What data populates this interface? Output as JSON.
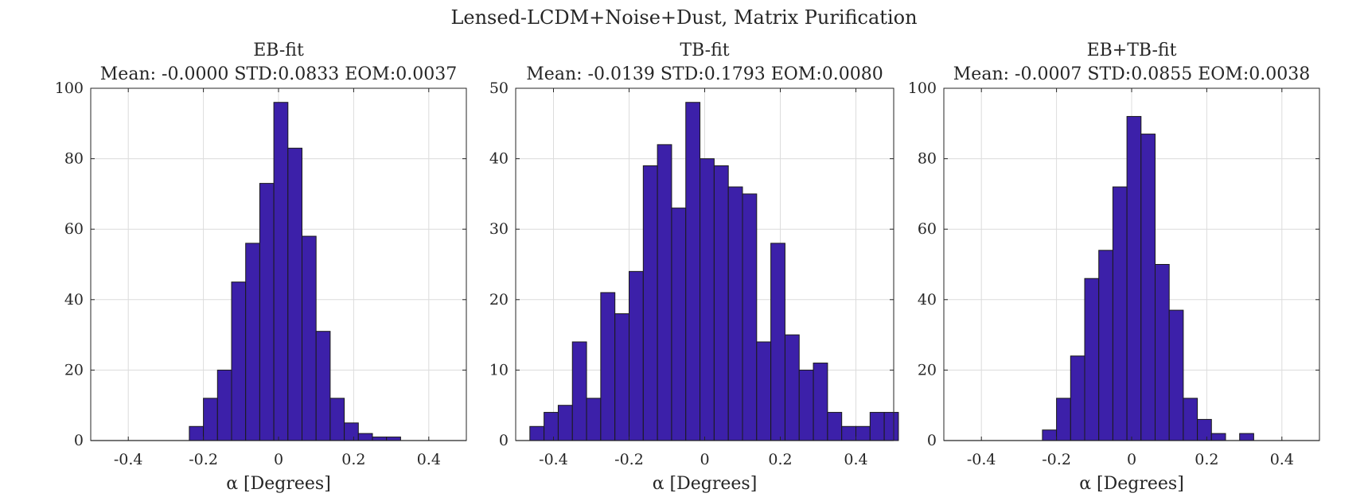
{
  "figure_title": "Lensed-LCDM+Noise+Dust, Matrix Purification",
  "colors": {
    "bar_fill": "#3C20A9",
    "bar_edge": "#1a1a1a",
    "grid": "#dcdcdc",
    "axis": "#262626"
  },
  "chart_data": [
    {
      "type": "bar",
      "title": "EB-fit",
      "subtitle": "Mean: -0.0000 STD:0.0833 EOM:0.0037",
      "xlabel": "α [Degrees]",
      "ylabel": "",
      "xlim": [
        -0.5,
        0.5
      ],
      "ylim": [
        0,
        100
      ],
      "xticks": [
        -0.4,
        -0.2,
        0,
        0.2,
        0.4
      ],
      "xtick_labels": [
        "-0.4",
        "-0.2",
        "0",
        "0.2",
        "0.4"
      ],
      "yticks": [
        0,
        20,
        40,
        60,
        80,
        100
      ],
      "ytick_labels": [
        "0",
        "20",
        "40",
        "60",
        "80",
        "100"
      ],
      "grid": true,
      "bin_edges": [
        -0.5,
        -0.4625,
        -0.425,
        -0.3875,
        -0.35,
        -0.3125,
        -0.275,
        -0.2375,
        -0.2,
        -0.1625,
        -0.125,
        -0.0875,
        -0.05,
        -0.0125,
        0.025,
        0.0625,
        0.1,
        0.1375,
        0.175,
        0.2125,
        0.25,
        0.2875,
        0.325,
        0.3625,
        0.4,
        0.4375,
        0.475,
        0.5
      ],
      "values": [
        0,
        0,
        0,
        0,
        0,
        0,
        0,
        4,
        12,
        20,
        45,
        56,
        73,
        96,
        83,
        58,
        31,
        12,
        5,
        2,
        1,
        1,
        0,
        0,
        0,
        0,
        0
      ]
    },
    {
      "type": "bar",
      "title": "TB-fit",
      "subtitle": "Mean: -0.0139 STD:0.1793 EOM:0.0080",
      "xlabel": "α [Degrees]",
      "ylabel": "",
      "xlim": [
        -0.5,
        0.5
      ],
      "ylim": [
        0,
        50
      ],
      "xticks": [
        -0.4,
        -0.2,
        0,
        0.2,
        0.4
      ],
      "xtick_labels": [
        "-0.4",
        "-0.2",
        "0",
        "0.2",
        "0.4"
      ],
      "yticks": [
        0,
        10,
        20,
        30,
        40,
        50
      ],
      "ytick_labels": [
        "0",
        "10",
        "20",
        "30",
        "40",
        "50"
      ],
      "grid": true,
      "bin_edges": [
        -0.4625,
        -0.425,
        -0.3875,
        -0.35,
        -0.3125,
        -0.275,
        -0.2375,
        -0.2,
        -0.1625,
        -0.125,
        -0.0875,
        -0.05,
        -0.0125,
        0.025,
        0.0625,
        0.1,
        0.1375,
        0.175,
        0.2125,
        0.25,
        0.2875,
        0.325,
        0.3625,
        0.4,
        0.4375,
        0.475,
        0.5125
      ],
      "values": [
        2,
        4,
        5,
        14,
        6,
        21,
        18,
        24,
        39,
        42,
        33,
        48,
        40,
        39,
        36,
        35,
        14,
        28,
        15,
        10,
        11,
        4,
        2,
        2,
        4,
        4
      ]
    },
    {
      "type": "bar",
      "title": "EB+TB-fit",
      "subtitle": "Mean: -0.0007 STD:0.0855 EOM:0.0038",
      "xlabel": "α [Degrees]",
      "ylabel": "",
      "xlim": [
        -0.5,
        0.5
      ],
      "ylim": [
        0,
        100
      ],
      "xticks": [
        -0.4,
        -0.2,
        0,
        0.2,
        0.4
      ],
      "xtick_labels": [
        "-0.4",
        "-0.2",
        "0",
        "0.2",
        "0.4"
      ],
      "yticks": [
        0,
        20,
        40,
        60,
        80,
        100
      ],
      "ytick_labels": [
        "0",
        "20",
        "40",
        "60",
        "80",
        "100"
      ],
      "grid": true,
      "bin_edges": [
        -0.5,
        -0.4625,
        -0.425,
        -0.3875,
        -0.35,
        -0.3125,
        -0.275,
        -0.2375,
        -0.2,
        -0.1625,
        -0.125,
        -0.0875,
        -0.05,
        -0.0125,
        0.025,
        0.0625,
        0.1,
        0.1375,
        0.175,
        0.2125,
        0.25,
        0.2875,
        0.325,
        0.3625,
        0.4,
        0.4375,
        0.475,
        0.5
      ],
      "values": [
        0,
        0,
        0,
        0,
        0,
        0,
        0,
        3,
        12,
        24,
        46,
        54,
        72,
        92,
        87,
        50,
        37,
        12,
        6,
        2,
        0,
        2,
        0,
        0,
        0,
        0,
        0
      ]
    }
  ]
}
